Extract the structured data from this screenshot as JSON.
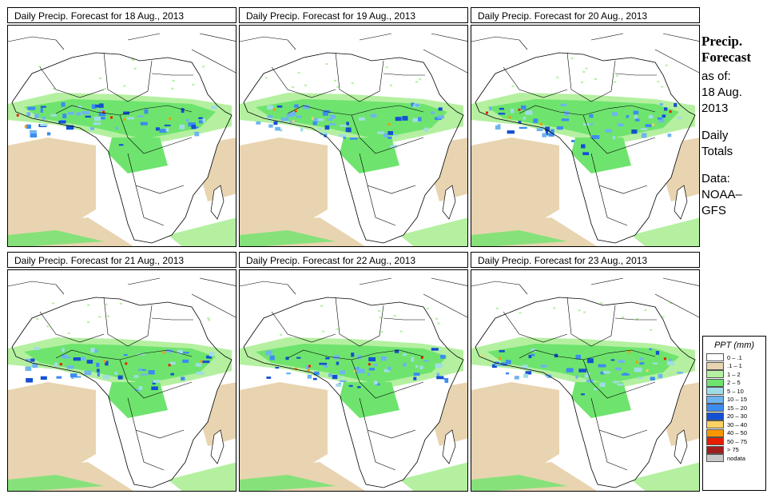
{
  "panels": [
    {
      "title": "Daily Precip. Forecast for  18 Aug., 2013"
    },
    {
      "title": "Daily Precip. Forecast for  19 Aug., 2013"
    },
    {
      "title": "Daily Precip. Forecast for  20 Aug., 2013"
    },
    {
      "title": "Daily Precip. Forecast for  21 Aug., 2013"
    },
    {
      "title": "Daily Precip. Forecast for  22 Aug., 2013"
    },
    {
      "title": "Daily Precip. Forecast for  23 Aug., 2013"
    }
  ],
  "sidebar": {
    "heading1": "Precip.",
    "heading2": "Forecast",
    "asof": "as of:",
    "date1": "18 Aug.",
    "date2": "2013",
    "daily1": "Daily",
    "daily2": "Totals",
    "data1": "Data:",
    "data2": "NOAA–",
    "data3": "GFS"
  },
  "legend": {
    "title": "PPT (mm)",
    "items": [
      {
        "label": "0 – .1",
        "color": "#ffffff"
      },
      {
        "label": ".1 – 1",
        "color": "#e8d4b0"
      },
      {
        "label": "1 – 2",
        "color": "#b4f0a0"
      },
      {
        "label": "2 – 5",
        "color": "#6ee46e"
      },
      {
        "label": "5 – 10",
        "color": "#a0dce6"
      },
      {
        "label": "10 – 15",
        "color": "#6eb4f0"
      },
      {
        "label": "15 – 20",
        "color": "#3c8cf0"
      },
      {
        "label": "20 – 30",
        "color": "#1450d2"
      },
      {
        "label": "30 – 40",
        "color": "#fad264"
      },
      {
        "label": "40 – 50",
        "color": "#fa9600"
      },
      {
        "label": "50 – 75",
        "color": "#e61e00"
      },
      {
        "label": "> 75",
        "color": "#a01e1e"
      },
      {
        "label": "nodata",
        "color": "#c8c8c8"
      }
    ]
  }
}
